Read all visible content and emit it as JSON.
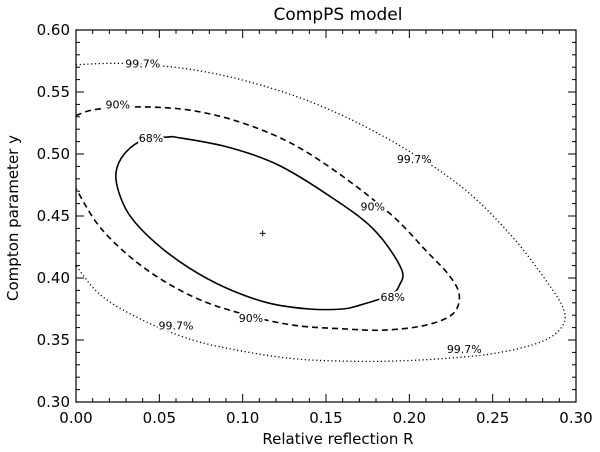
{
  "chart_data": {
    "type": "contour",
    "title": "CompPS model",
    "xlabel": "Relative reflection R",
    "ylabel": "Compton parameter y",
    "xlim": [
      0.0,
      0.3
    ],
    "ylim": [
      0.3,
      0.6
    ],
    "xticks": [
      "0.00",
      "0.05",
      "0.10",
      "0.15",
      "0.20",
      "0.25",
      "0.30"
    ],
    "yticks": [
      "0.30",
      "0.35",
      "0.40",
      "0.45",
      "0.50",
      "0.55",
      "0.60"
    ],
    "best_fit": {
      "x": 0.112,
      "y": 0.436
    },
    "contours": [
      {
        "level": "68%",
        "style": "solid",
        "points": [
          [
            0.058,
            0.514
          ],
          [
            0.09,
            0.506
          ],
          [
            0.12,
            0.492
          ],
          [
            0.15,
            0.468
          ],
          [
            0.178,
            0.44
          ],
          [
            0.195,
            0.408
          ],
          [
            0.194,
            0.394
          ],
          [
            0.188,
            0.386
          ],
          [
            0.17,
            0.378
          ],
          [
            0.16,
            0.375
          ],
          [
            0.14,
            0.375
          ],
          [
            0.115,
            0.38
          ],
          [
            0.09,
            0.392
          ],
          [
            0.068,
            0.408
          ],
          [
            0.048,
            0.428
          ],
          [
            0.033,
            0.449
          ],
          [
            0.026,
            0.468
          ],
          [
            0.024,
            0.485
          ],
          [
            0.029,
            0.5
          ],
          [
            0.04,
            0.511
          ],
          [
            0.058,
            0.514
          ]
        ],
        "labels": [
          {
            "text": "68%",
            "x": 0.045,
            "y": 0.512
          },
          {
            "text": "68%",
            "x": 0.19,
            "y": 0.384
          }
        ]
      },
      {
        "level": "90%",
        "style": "dashed",
        "points": [
          [
            0.0,
            0.531
          ],
          [
            0.012,
            0.536
          ],
          [
            0.04,
            0.538
          ],
          [
            0.07,
            0.535
          ],
          [
            0.1,
            0.525
          ],
          [
            0.13,
            0.508
          ],
          [
            0.16,
            0.482
          ],
          [
            0.19,
            0.45
          ],
          [
            0.21,
            0.422
          ],
          [
            0.224,
            0.402
          ],
          [
            0.23,
            0.386
          ],
          [
            0.226,
            0.371
          ],
          [
            0.21,
            0.362
          ],
          [
            0.185,
            0.358
          ],
          [
            0.16,
            0.359
          ],
          [
            0.13,
            0.362
          ],
          [
            0.1,
            0.371
          ],
          [
            0.07,
            0.385
          ],
          [
            0.04,
            0.409
          ],
          [
            0.015,
            0.44
          ],
          [
            0.0,
            0.472
          ]
        ],
        "labels": [
          {
            "text": "90%",
            "x": 0.025,
            "y": 0.539
          },
          {
            "text": "90%",
            "x": 0.178,
            "y": 0.457
          },
          {
            "text": "90%",
            "x": 0.105,
            "y": 0.367
          }
        ]
      },
      {
        "level": "99.7%",
        "style": "dotted",
        "points": [
          [
            0.0,
            0.572
          ],
          [
            0.03,
            0.573
          ],
          [
            0.07,
            0.568
          ],
          [
            0.11,
            0.556
          ],
          [
            0.15,
            0.537
          ],
          [
            0.19,
            0.51
          ],
          [
            0.23,
            0.475
          ],
          [
            0.26,
            0.436
          ],
          [
            0.282,
            0.398
          ],
          [
            0.293,
            0.373
          ],
          [
            0.29,
            0.358
          ],
          [
            0.276,
            0.347
          ],
          [
            0.25,
            0.339
          ],
          [
            0.22,
            0.335
          ],
          [
            0.19,
            0.333
          ],
          [
            0.16,
            0.333
          ],
          [
            0.13,
            0.335
          ],
          [
            0.1,
            0.341
          ],
          [
            0.07,
            0.35
          ],
          [
            0.04,
            0.366
          ],
          [
            0.015,
            0.386
          ],
          [
            0.0,
            0.41
          ]
        ],
        "labels": [
          {
            "text": "99.7%",
            "x": 0.04,
            "y": 0.572
          },
          {
            "text": "99.7%",
            "x": 0.203,
            "y": 0.495
          },
          {
            "text": "99.7%",
            "x": 0.06,
            "y": 0.361
          },
          {
            "text": "99.7%",
            "x": 0.233,
            "y": 0.342
          }
        ]
      }
    ]
  }
}
